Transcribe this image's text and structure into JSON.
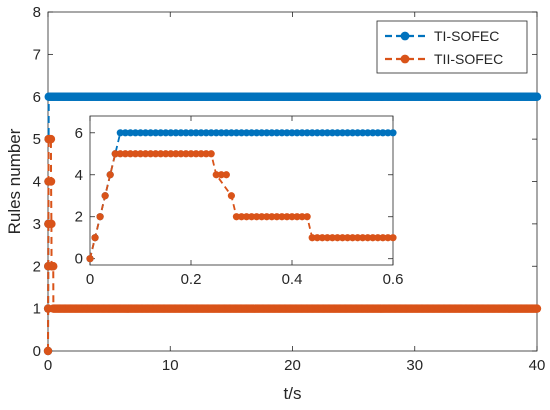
{
  "chart_data": [
    {
      "type": "line",
      "panel": "main",
      "xlabel": "t/s",
      "ylabel": "Rules number",
      "xlim": [
        0,
        40
      ],
      "ylim": [
        0,
        8
      ],
      "xticks": [
        "0",
        "10",
        "20",
        "30",
        "40"
      ],
      "yticks": [
        "0",
        "1",
        "2",
        "3",
        "4",
        "5",
        "6",
        "7",
        "8"
      ],
      "legend_position": "top-right",
      "grid": false,
      "series": [
        {
          "name": "TI-SOFEC",
          "color": "#0072BD",
          "line_style": "dashed",
          "marker": "circle",
          "x": [
            0,
            0.01,
            0.02,
            0.03,
            0.04,
            0.05,
            0.06,
            40
          ],
          "y": [
            0,
            1,
            2,
            3,
            4,
            5,
            6,
            6
          ]
        },
        {
          "name": "TII-SOFEC",
          "color": "#D95319",
          "line_style": "dashed",
          "marker": "circle",
          "x": [
            0,
            0.01,
            0.02,
            0.03,
            0.04,
            0.05,
            0.24,
            0.25,
            0.28,
            0.29,
            0.43,
            0.44,
            40
          ],
          "y": [
            0,
            1,
            2,
            3,
            4,
            5,
            5,
            4,
            3,
            2,
            2,
            1,
            1
          ]
        }
      ]
    },
    {
      "type": "line",
      "panel": "inset",
      "xlim": [
        0,
        0.6
      ],
      "ylim": [
        -0.3,
        6.8
      ],
      "xticks": [
        "0",
        "0.2",
        "0.4",
        "0.6"
      ],
      "yticks": [
        "0",
        "2",
        "4",
        "6"
      ],
      "grid": false,
      "series": [
        {
          "color": "#0072BD",
          "line_style": "dashed",
          "marker": "circle",
          "x": [
            0,
            0.01,
            0.02,
            0.03,
            0.04,
            0.05,
            0.06,
            0.6
          ],
          "y": [
            0,
            1,
            2,
            3,
            4,
            5,
            6,
            6
          ]
        },
        {
          "color": "#D95319",
          "line_style": "dashed",
          "marker": "circle",
          "x": [
            0,
            0.01,
            0.02,
            0.03,
            0.04,
            0.05,
            0.24,
            0.25,
            0.28,
            0.29,
            0.43,
            0.44,
            0.6
          ],
          "y": [
            0,
            1,
            2,
            3,
            4,
            5,
            5,
            4,
            3,
            2,
            2,
            1,
            1
          ]
        }
      ]
    }
  ]
}
